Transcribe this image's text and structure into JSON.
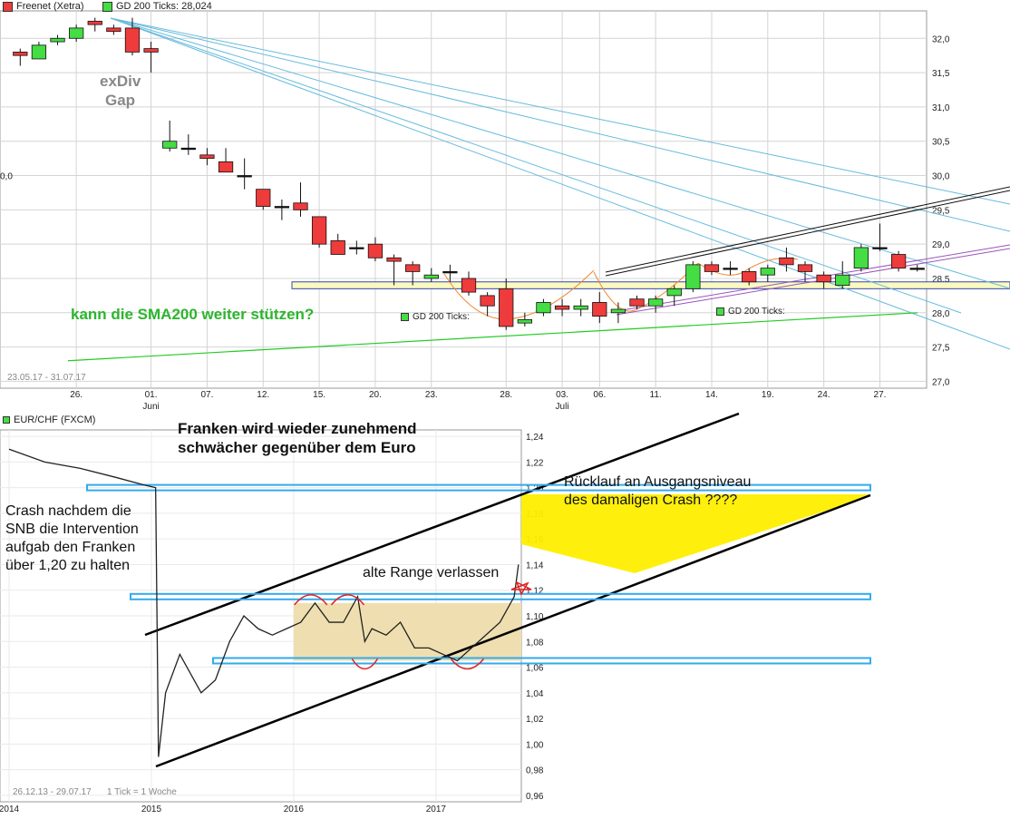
{
  "colors": {
    "up": "#44dd44",
    "down": "#ee3b3b",
    "grid": "#d4d4d4",
    "sma": "#22cc22",
    "trend": "#66bbdd",
    "channel": "#000000",
    "highlight": "#fafac0",
    "blueBand": "#33aaee",
    "yellow": "#ffee00",
    "tan": "#efdfb0"
  },
  "top": {
    "legend": {
      "series1": "Freenet (Xetra)",
      "series2": "GD 200 Ticks: 28,024"
    },
    "range_label": "23.05.17 - 31.07.17",
    "sma_label1": "GD 200 Ticks:",
    "sma_label2": "GD 200 Ticks:",
    "annotation_exdiv": "exDiv",
    "annotation_gap": "Gap",
    "annotation_sma": "kann die SMA200 weiter stützen?",
    "x_ticks": [
      "26.",
      "01.",
      "07.",
      "12.",
      "15.",
      "20.",
      "23.",
      "28.",
      "03.",
      "06.",
      "11.",
      "14.",
      "19.",
      "24.",
      "27."
    ],
    "x_sub": [
      "Juni",
      "Juli"
    ],
    "y_ticks": [
      "32,0",
      "31,5",
      "31,0",
      "30,5",
      "30,0",
      "29,5",
      "29,0",
      "28,5",
      "28,0",
      "27,5",
      "27,0"
    ],
    "left_edge_label": "0,0"
  },
  "bottom": {
    "legend": "EUR/CHF (FXCM)",
    "range_label": "26.12.13 - 29.07.17",
    "tick_label": "1 Tick = 1 Woche",
    "title_line1": "Franken wird wieder zunehmend",
    "title_line2": "schwächer gegenüber dem Euro",
    "crash_lines": [
      "Crash nachdem die",
      "SNB die Intervention",
      "aufgab den Franken",
      "über 1,20 zu halten"
    ],
    "rueck_line1": "Rücklauf an Ausgangsniveau",
    "rueck_line2": "des damaligen Crash ????",
    "alte_range": "alte Range verlassen",
    "x_ticks": [
      "2014",
      "2015",
      "2016",
      "2017"
    ],
    "y_ticks": [
      "1,24",
      "1,22",
      "1,20",
      "1,18",
      "1,16",
      "1,14",
      "1,12",
      "1,10",
      "1,08",
      "1,06",
      "1,04",
      "1,02",
      "1,00",
      "0,98",
      "0,96"
    ]
  },
  "chart_data": [
    {
      "type": "candlestick",
      "title": "Freenet (Xetra)",
      "date_range": "23.05.17 - 31.07.17",
      "ylim": [
        26.9,
        32.4
      ],
      "x_tick_labels": [
        "26.",
        "01.",
        "07.",
        "12.",
        "15.",
        "20.",
        "23.",
        "28.",
        "03.",
        "06.",
        "11.",
        "14.",
        "19.",
        "24.",
        "27."
      ],
      "candles": [
        {
          "open": 31.8,
          "close": 31.75,
          "high": 31.85,
          "low": 31.6
        },
        {
          "open": 31.7,
          "close": 31.9,
          "high": 31.95,
          "low": 31.7
        },
        {
          "open": 31.95,
          "close": 32.0,
          "high": 32.05,
          "low": 31.9
        },
        {
          "open": 32.0,
          "close": 32.15,
          "high": 32.2,
          "low": 31.95
        },
        {
          "open": 32.25,
          "close": 32.2,
          "high": 32.3,
          "low": 32.1
        },
        {
          "open": 32.15,
          "close": 32.1,
          "high": 32.2,
          "low": 32.05
        },
        {
          "open": 32.15,
          "close": 31.8,
          "high": 32.3,
          "low": 31.75
        },
        {
          "open": 31.85,
          "close": 31.8,
          "high": 31.95,
          "low": 31.5
        },
        {
          "open": 30.4,
          "close": 30.5,
          "high": 30.8,
          "low": 30.35
        },
        {
          "open": 30.4,
          "close": 30.4,
          "high": 30.6,
          "low": 30.3
        },
        {
          "open": 30.3,
          "close": 30.25,
          "high": 30.4,
          "low": 30.15
        },
        {
          "open": 30.2,
          "close": 30.05,
          "high": 30.4,
          "low": 30.05
        },
        {
          "open": 30.0,
          "close": 30.0,
          "high": 30.25,
          "low": 29.8
        },
        {
          "open": 29.8,
          "close": 29.55,
          "high": 29.8,
          "low": 29.5
        },
        {
          "open": 29.55,
          "close": 29.55,
          "high": 29.65,
          "low": 29.35
        },
        {
          "open": 29.6,
          "close": 29.5,
          "high": 29.9,
          "low": 29.4
        },
        {
          "open": 29.4,
          "close": 29.0,
          "high": 29.4,
          "low": 28.95
        },
        {
          "open": 29.05,
          "close": 28.85,
          "high": 29.15,
          "low": 28.85
        },
        {
          "open": 28.95,
          "close": 28.95,
          "high": 29.05,
          "low": 28.85
        },
        {
          "open": 29.0,
          "close": 28.8,
          "high": 29.1,
          "low": 28.75
        },
        {
          "open": 28.8,
          "close": 28.75,
          "high": 28.85,
          "low": 28.4
        },
        {
          "open": 28.7,
          "close": 28.6,
          "high": 28.75,
          "low": 28.4
        },
        {
          "open": 28.5,
          "close": 28.55,
          "high": 28.65,
          "low": 28.45
        },
        {
          "open": 28.6,
          "close": 28.6,
          "high": 28.7,
          "low": 28.45
        },
        {
          "open": 28.5,
          "close": 28.3,
          "high": 28.6,
          "low": 28.25
        },
        {
          "open": 28.25,
          "close": 28.1,
          "high": 28.3,
          "low": 27.95
        },
        {
          "open": 28.35,
          "close": 27.8,
          "high": 28.5,
          "low": 27.75
        },
        {
          "open": 27.85,
          "close": 27.9,
          "high": 28.0,
          "low": 27.8
        },
        {
          "open": 28.0,
          "close": 28.15,
          "high": 28.2,
          "low": 27.95
        },
        {
          "open": 28.1,
          "close": 28.05,
          "high": 28.2,
          "low": 27.95
        },
        {
          "open": 28.05,
          "close": 28.1,
          "high": 28.2,
          "low": 27.95
        },
        {
          "open": 28.15,
          "close": 27.95,
          "high": 28.3,
          "low": 27.85
        },
        {
          "open": 28.0,
          "close": 28.05,
          "high": 28.15,
          "low": 27.85
        },
        {
          "open": 28.2,
          "close": 28.1,
          "high": 28.25,
          "low": 28.05
        },
        {
          "open": 28.1,
          "close": 28.2,
          "high": 28.25,
          "low": 28.0
        },
        {
          "open": 28.25,
          "close": 28.35,
          "high": 28.4,
          "low": 28.1
        },
        {
          "open": 28.35,
          "close": 28.7,
          "high": 28.75,
          "low": 28.3
        },
        {
          "open": 28.7,
          "close": 28.6,
          "high": 28.75,
          "low": 28.55
        },
        {
          "open": 28.65,
          "close": 28.65,
          "high": 28.75,
          "low": 28.55
        },
        {
          "open": 28.6,
          "close": 28.45,
          "high": 28.65,
          "low": 28.4
        },
        {
          "open": 28.55,
          "close": 28.65,
          "high": 28.7,
          "low": 28.45
        },
        {
          "open": 28.8,
          "close": 28.7,
          "high": 28.95,
          "low": 28.6
        },
        {
          "open": 28.7,
          "close": 28.6,
          "high": 28.75,
          "low": 28.45
        },
        {
          "open": 28.55,
          "close": 28.45,
          "high": 28.6,
          "low": 28.35
        },
        {
          "open": 28.4,
          "close": 28.55,
          "high": 28.75,
          "low": 28.35
        },
        {
          "open": 28.65,
          "close": 28.95,
          "high": 29.0,
          "low": 28.6
        },
        {
          "open": 28.95,
          "close": 28.95,
          "high": 29.3,
          "low": 28.9
        },
        {
          "open": 28.85,
          "close": 28.65,
          "high": 28.9,
          "low": 28.6
        },
        {
          "open": 28.65,
          "close": 28.65,
          "high": 28.7,
          "low": 28.6
        }
      ],
      "sma200": {
        "start": 27.3,
        "end": 28.0
      },
      "support_band": [
        28.35,
        28.45
      ]
    },
    {
      "type": "line",
      "title": "EUR/CHF (FXCM)",
      "date_range": "26.12.13 - 29.07.17",
      "ylim": [
        0.955,
        1.245
      ],
      "x_tick_labels": [
        "2014",
        "2015",
        "2016",
        "2017"
      ],
      "x": [
        2014.0,
        2014.25,
        2014.5,
        2014.75,
        2014.95,
        2015.03,
        2015.05,
        2015.1,
        2015.2,
        2015.35,
        2015.45,
        2015.55,
        2015.65,
        2015.75,
        2015.85,
        2015.95,
        2016.05,
        2016.15,
        2016.25,
        2016.35,
        2016.45,
        2016.5,
        2016.55,
        2016.65,
        2016.75,
        2016.85,
        2016.95,
        2017.05,
        2017.15,
        2017.25,
        2017.35,
        2017.45,
        2017.55,
        2017.58
      ],
      "y": [
        1.23,
        1.22,
        1.215,
        1.208,
        1.202,
        1.2,
        0.99,
        1.04,
        1.07,
        1.04,
        1.05,
        1.08,
        1.1,
        1.09,
        1.085,
        1.09,
        1.095,
        1.11,
        1.095,
        1.095,
        1.115,
        1.08,
        1.09,
        1.085,
        1.095,
        1.075,
        1.075,
        1.07,
        1.065,
        1.075,
        1.085,
        1.095,
        1.115,
        1.14
      ]
    }
  ]
}
